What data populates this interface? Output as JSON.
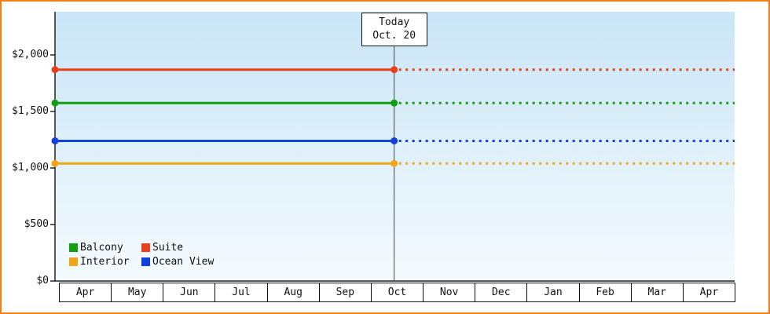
{
  "chart_data": {
    "type": "line",
    "title": "",
    "x_categories": [
      "Apr",
      "May",
      "Jun",
      "Jul",
      "Aug",
      "Sep",
      "Oct",
      "Nov",
      "Dec",
      "Jan",
      "Feb",
      "Mar",
      "Apr"
    ],
    "y_ticks": [
      {
        "value": 0,
        "label": "$0"
      },
      {
        "value": 500,
        "label": "$500"
      },
      {
        "value": 1000,
        "label": "$1,000"
      },
      {
        "value": 1500,
        "label": "$1,500"
      },
      {
        "value": 2000,
        "label": "$2,000"
      }
    ],
    "y_range": [
      0,
      2380
    ],
    "series": [
      {
        "name": "Suite",
        "value": 1870,
        "color": "#e8401c"
      },
      {
        "name": "Balcony",
        "value": 1575,
        "color": "#12a012"
      },
      {
        "name": "Ocean View",
        "value": 1240,
        "color": "#1140dd"
      },
      {
        "name": "Interior",
        "value": 1040,
        "color": "#efa71a"
      }
    ],
    "legend": {
      "position": "bottom-left",
      "rows": [
        [
          "Balcony",
          "Suite"
        ],
        [
          "Interior",
          "Ocean View"
        ]
      ]
    },
    "today": {
      "label": "Today",
      "date": "Oct. 20",
      "month_index": 6,
      "month_fraction": 0.45
    },
    "line_style": {
      "before_today": "solid",
      "after_today": "dotted"
    },
    "grid": "off"
  },
  "colors": {
    "frame_border": "#ef8018",
    "plot_top": "#c9e5f6",
    "plot_bottom": "#f4fbfe",
    "axis": "#222222",
    "today_line": "#444444",
    "text": "#111111"
  }
}
